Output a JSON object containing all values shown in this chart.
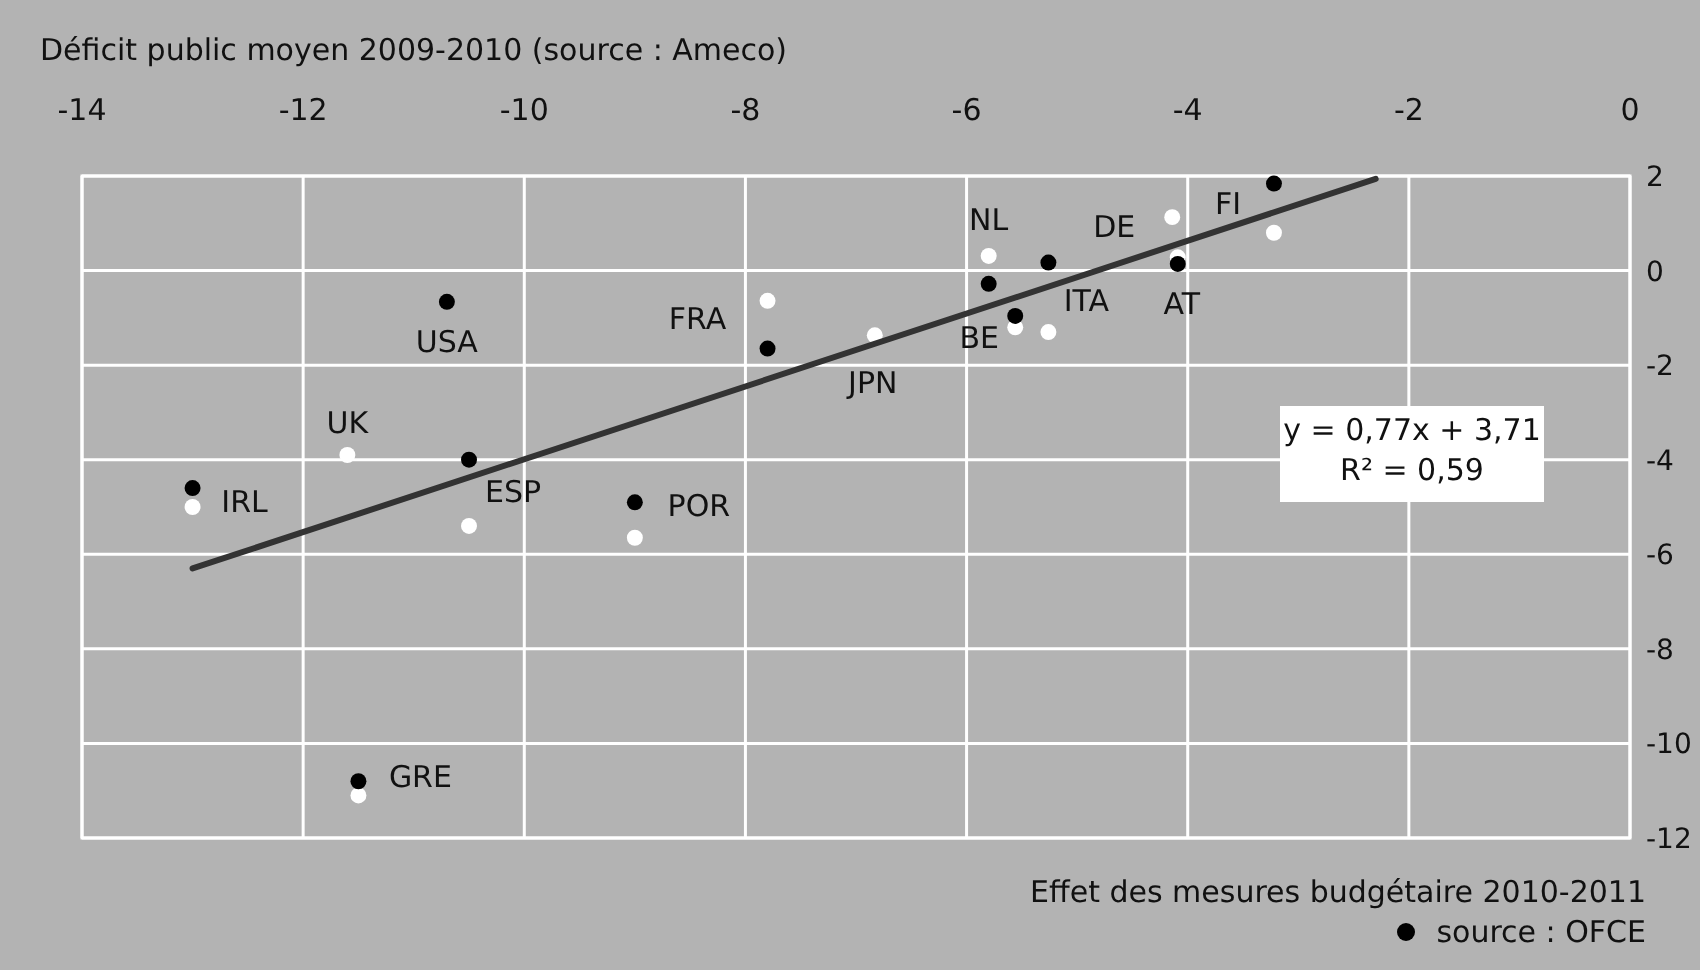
{
  "chart_data": {
    "type": "scatter",
    "xlabel": "Déficit public moyen 2009-2010 (source : Ameco)",
    "legend_title": "Effet des mesures budgétaire 2010-2011",
    "xlim": [
      -14,
      0
    ],
    "xticks": [
      -14,
      -12,
      -10,
      -8,
      -6,
      -4,
      -2,
      0
    ],
    "ylim": [
      -12,
      2
    ],
    "yticks": [
      -12,
      -10,
      -8,
      -6,
      -4,
      -2,
      0,
      2
    ],
    "grid": true,
    "legend": "bottom right",
    "series": [
      {
        "color": "#ffffff",
        "marker": "circle",
        "x": [
          -7.8,
          -11.6,
          -10.5,
          -13.0,
          -9.0,
          -11.5,
          -6.83,
          -5.8,
          -5.26,
          -5.56,
          -4.14,
          -4.09,
          -3.22
        ],
        "values": [
          -0.64,
          -3.9,
          -5.4,
          -5.0,
          -5.65,
          -11.1,
          -1.37,
          0.31,
          -1.3,
          -1.2,
          1.13,
          0.28,
          0.8
        ]
      },
      {
        "name": "source : OFCE",
        "color": "#000000",
        "marker": "circle",
        "x": [
          -10.7,
          -7.8,
          -10.5,
          -13.0,
          -9.0,
          -11.5,
          -5.8,
          -5.26,
          -5.56,
          -4.09,
          -3.22
        ],
        "values": [
          -0.66,
          -1.65,
          -4.0,
          -4.6,
          -4.9,
          -10.8,
          -0.28,
          0.17,
          -0.96,
          0.14,
          1.84
        ]
      },
      {
        "type": "line",
        "color": "#333333",
        "x": [
          -13,
          -2.3
        ],
        "values": [
          -6.3,
          1.94
        ]
      }
    ],
    "annotations": [
      {
        "text": "NL",
        "x": -5.8,
        "y": 0.31
      },
      {
        "text": "DE",
        "x": -4.14,
        "y": 1.13
      },
      {
        "text": "FI",
        "x": -3.22,
        "y": 1.84
      },
      {
        "text": "ITA",
        "x": -5.26,
        "y": 0.17
      },
      {
        "text": "AT",
        "x": -4.09,
        "y": 0.14
      },
      {
        "text": "BE",
        "x": -5.56,
        "y": -0.96
      },
      {
        "text": "JPN",
        "x": -6.83,
        "y": -1.37
      },
      {
        "text": "FRA",
        "x": -7.8,
        "y": -0.64
      },
      {
        "text": "USA",
        "x": -10.7,
        "y": -0.66
      },
      {
        "text": "UK",
        "x": -11.6,
        "y": -3.9
      },
      {
        "text": "ESP",
        "x": -10.5,
        "y": -4.0
      },
      {
        "text": "IRL",
        "x": -13.0,
        "y": -4.6
      },
      {
        "text": "POR",
        "x": -9.0,
        "y": -4.9
      },
      {
        "text": "GRE",
        "x": -11.5,
        "y": -10.8
      },
      "y = 0,77x + 3,71",
      "R² = 0,59"
    ]
  }
}
